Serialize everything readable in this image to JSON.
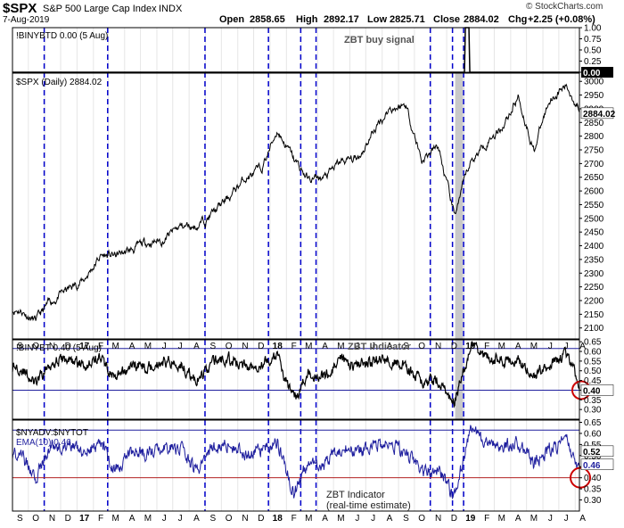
{
  "header": {
    "symbol": "$SPX",
    "name": "S&P 500 Large Cap Index",
    "exchange": "INDX",
    "date": "7-Aug-2019",
    "open_label": "Open",
    "open": "2858.65",
    "high_label": "High",
    "high": "2892.17",
    "low_label": "Low",
    "low": "2825.71",
    "close_label": "Close",
    "close": "2884.02",
    "chg_label": "Chg",
    "chg": "+2.25 (+0.08%)",
    "source": "© StockCharts.com"
  },
  "colors": {
    "price": "#000000",
    "ema": "#1f1f9e",
    "vline": "#0000cc",
    "hline_top": "#1f1f9e",
    "hline_red": "#b22222",
    "circle": "#cc0000",
    "shade": "#c8c8c8",
    "grid": "#e6e6e6"
  },
  "chart_data": [
    {
      "panel": "buy-signal",
      "type": "line",
      "legend": "!BINYBTD 0.00 (5 Aug)",
      "annotation": "ZBT buy signal",
      "ylim": [
        0.0,
        1.0
      ],
      "y_ticks": [
        "1.00",
        "0.75",
        "0.50",
        "0.25",
        "0.00"
      ],
      "last_value_label": "0.00",
      "signal_spike_date": "2019-01-07",
      "signal_value": 1.0
    },
    {
      "panel": "price",
      "type": "line",
      "legend": "$SPX (Daily) 2884.02",
      "ylim": [
        2060,
        3030
      ],
      "y_ticks": [
        "3000",
        "2950",
        "2900",
        "2850",
        "2800",
        "2750",
        "2700",
        "2650",
        "2600",
        "2550",
        "2500",
        "2450",
        "2400",
        "2350",
        "2300",
        "2250",
        "2200",
        "2150",
        "2100"
      ],
      "last_value_label": "2884.02",
      "x_months": [
        "2016-09",
        "2016-10",
        "2016-11",
        "2016-12",
        "2017-01",
        "2017-02",
        "2017-03",
        "2017-04",
        "2017-05",
        "2017-06",
        "2017-07",
        "2017-08",
        "2017-09",
        "2017-10",
        "2017-11",
        "2017-12",
        "2018-01",
        "2018-02",
        "2018-03",
        "2018-04",
        "2018-05",
        "2018-06",
        "2018-07",
        "2018-08",
        "2018-09",
        "2018-10",
        "2018-11",
        "2018-12",
        "2019-01",
        "2019-02",
        "2019-03",
        "2019-04",
        "2019-05",
        "2019-06",
        "2019-07",
        "2019-08"
      ],
      "close_month_end": [
        2168,
        2126,
        2199,
        2239,
        2279,
        2364,
        2363,
        2384,
        2412,
        2423,
        2470,
        2472,
        2519,
        2575,
        2648,
        2674,
        2824,
        2714,
        2641,
        2648,
        2705,
        2718,
        2816,
        2902,
        2914,
        2712,
        2760,
        2507,
        2704,
        2784,
        2834,
        2946,
        2752,
        2942,
        2980,
        2884
      ],
      "shaded_period": [
        "2018-12-17",
        "2019-01-03"
      ]
    },
    {
      "panel": "zbt-indicator",
      "type": "line",
      "legend": "!BINYBT 0.40 (5 Aug)",
      "annotation": "ZBT Indicator",
      "ylim": [
        0.25,
        0.66
      ],
      "y_ticks": [
        "0.65",
        "0.60",
        "0.55",
        "0.50",
        "0.45",
        "0.40",
        "0.35",
        "0.30"
      ],
      "last_value_label": "0.40",
      "threshold_high": 0.615,
      "threshold_low": 0.4,
      "x_months": [
        "2016-09",
        "2016-10",
        "2016-11",
        "2016-12",
        "2017-01",
        "2017-02",
        "2017-03",
        "2017-04",
        "2017-05",
        "2017-06",
        "2017-07",
        "2017-08",
        "2017-09",
        "2017-10",
        "2017-11",
        "2017-12",
        "2018-01",
        "2018-02",
        "2018-03",
        "2018-04",
        "2018-05",
        "2018-06",
        "2018-07",
        "2018-08",
        "2018-09",
        "2018-10",
        "2018-11",
        "2018-12",
        "2019-01",
        "2019-02",
        "2019-03",
        "2019-04",
        "2019-05",
        "2019-06",
        "2019-07",
        "2019-08"
      ],
      "values": [
        0.52,
        0.43,
        0.55,
        0.56,
        0.53,
        0.57,
        0.45,
        0.53,
        0.52,
        0.55,
        0.54,
        0.44,
        0.55,
        0.56,
        0.52,
        0.54,
        0.57,
        0.35,
        0.49,
        0.47,
        0.55,
        0.53,
        0.55,
        0.56,
        0.52,
        0.44,
        0.45,
        0.33,
        0.63,
        0.57,
        0.55,
        0.56,
        0.48,
        0.54,
        0.58,
        0.4
      ]
    },
    {
      "panel": "zbt-estimate",
      "type": "line",
      "legend_ratio": "$NYADV:$NYTOT",
      "legend_ema": "EMA(10) 0.46",
      "annotation_line1": "ZBT Indicator",
      "annotation_line2": "(real-time estimate)",
      "ylim": [
        0.25,
        0.66
      ],
      "y_ticks": [
        "0.65",
        "0.60",
        "0.55",
        "0.50",
        "0.45",
        "0.40",
        "0.35",
        "0.30"
      ],
      "last_value_labels": [
        "0.52",
        "0.46"
      ],
      "threshold_high": 0.615,
      "threshold_low": 0.4,
      "x_months": [
        "2016-09",
        "2016-10",
        "2016-11",
        "2016-12",
        "2017-01",
        "2017-02",
        "2017-03",
        "2017-04",
        "2017-05",
        "2017-06",
        "2017-07",
        "2017-08",
        "2017-09",
        "2017-10",
        "2017-11",
        "2017-12",
        "2018-01",
        "2018-02",
        "2018-03",
        "2018-04",
        "2018-05",
        "2018-06",
        "2018-07",
        "2018-08",
        "2018-09",
        "2018-10",
        "2018-11",
        "2018-12",
        "2019-01",
        "2019-02",
        "2019-03",
        "2019-04",
        "2019-05",
        "2019-06",
        "2019-07",
        "2019-08"
      ],
      "values": [
        0.51,
        0.41,
        0.54,
        0.55,
        0.52,
        0.56,
        0.43,
        0.52,
        0.51,
        0.54,
        0.53,
        0.43,
        0.54,
        0.55,
        0.51,
        0.53,
        0.56,
        0.33,
        0.48,
        0.46,
        0.54,
        0.52,
        0.54,
        0.55,
        0.51,
        0.42,
        0.44,
        0.31,
        0.62,
        0.56,
        0.54,
        0.55,
        0.46,
        0.53,
        0.57,
        0.39
      ]
    }
  ],
  "x_axis_labels": [
    "S",
    "O",
    "N",
    "D",
    "17",
    "F",
    "M",
    "A",
    "M",
    "J",
    "J",
    "A",
    "S",
    "O",
    "N",
    "D",
    "18",
    "F",
    "M",
    "A",
    "M",
    "J",
    "J",
    "A",
    "S",
    "O",
    "N",
    "D",
    "19",
    "F",
    "M",
    "A",
    "M",
    "J",
    "J",
    "A"
  ],
  "signal_dates": [
    "2016-10-31",
    "2017-02-28",
    "2017-08-31",
    "2017-12-29",
    "2018-02-28",
    "2018-03-29",
    "2018-10-31",
    "2018-12-12",
    "2019-01-02"
  ]
}
